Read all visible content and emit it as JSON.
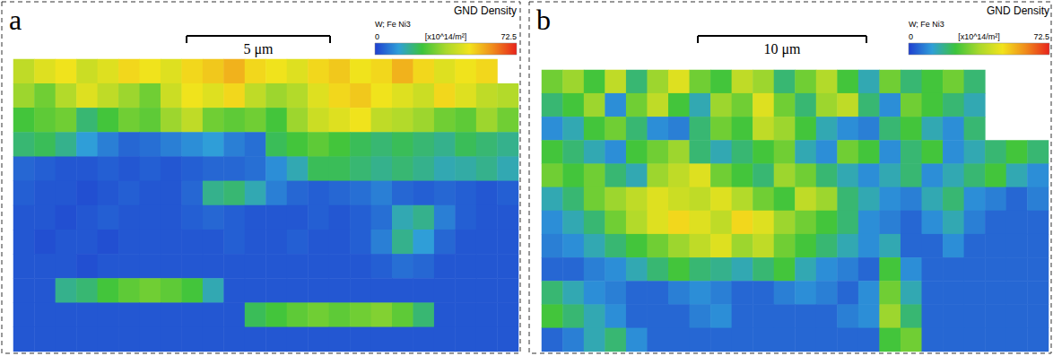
{
  "chart_data": [
    {
      "type": "heatmap",
      "title": "a",
      "scale_bar": "5 μm",
      "colorbar_title": "GND Density",
      "colorbar_subtitle": "W; Fe Ni3",
      "colorbar_unit": "[x10^14/m²]",
      "colorbar_range": [
        0,
        72.5
      ],
      "colorbar_ticks": [
        0,
        72.5
      ],
      "tick_labels": false,
      "cells": [
        [
          40,
          45,
          48,
          42,
          45,
          50,
          48,
          45,
          50,
          52,
          55,
          50,
          48,
          45,
          50,
          52,
          48,
          50,
          55,
          50,
          45,
          48,
          50,
          null
        ],
        [
          35,
          30,
          38,
          45,
          40,
          35,
          30,
          42,
          48,
          45,
          50,
          40,
          35,
          38,
          45,
          50,
          52,
          48,
          45,
          42,
          50,
          45,
          40,
          38
        ],
        [
          25,
          28,
          30,
          20,
          25,
          30,
          28,
          35,
          40,
          30,
          28,
          30,
          25,
          35,
          42,
          45,
          48,
          40,
          38,
          35,
          30,
          28,
          35,
          30
        ],
        [
          20,
          22,
          18,
          12,
          8,
          5,
          6,
          8,
          10,
          12,
          8,
          6,
          22,
          25,
          28,
          25,
          22,
          20,
          22,
          20,
          18,
          22,
          20,
          18
        ],
        [
          5,
          4,
          3,
          3,
          4,
          3,
          4,
          3,
          4,
          5,
          5,
          6,
          10,
          15,
          22,
          22,
          20,
          18,
          20,
          18,
          15,
          16,
          18,
          15
        ],
        [
          4,
          3,
          3,
          2,
          3,
          4,
          3,
          3,
          5,
          18,
          20,
          15,
          8,
          5,
          4,
          5,
          6,
          8,
          5,
          4,
          5,
          4,
          3,
          4
        ],
        [
          3,
          3,
          2,
          3,
          4,
          3,
          3,
          3,
          4,
          5,
          4,
          3,
          3,
          3,
          4,
          3,
          4,
          6,
          15,
          18,
          8,
          4,
          3,
          3
        ],
        [
          3,
          2,
          3,
          3,
          2,
          3,
          3,
          3,
          3,
          3,
          4,
          3,
          3,
          4,
          3,
          3,
          4,
          8,
          18,
          12,
          5,
          3,
          3,
          3
        ],
        [
          3,
          3,
          3,
          2,
          3,
          3,
          3,
          3,
          3,
          3,
          3,
          3,
          3,
          3,
          3,
          3,
          3,
          4,
          6,
          5,
          3,
          3,
          3,
          3
        ],
        [
          3,
          3,
          18,
          20,
          25,
          28,
          30,
          28,
          25,
          15,
          3,
          3,
          3,
          3,
          3,
          3,
          3,
          3,
          3,
          3,
          3,
          3,
          3,
          3
        ],
        [
          3,
          3,
          3,
          3,
          3,
          3,
          3,
          3,
          3,
          3,
          3,
          22,
          25,
          28,
          30,
          28,
          30,
          32,
          28,
          20,
          3,
          3,
          3,
          3
        ],
        [
          3,
          3,
          3,
          3,
          3,
          3,
          3,
          3,
          3,
          3,
          3,
          3,
          3,
          3,
          3,
          3,
          3,
          3,
          3,
          3,
          3,
          3,
          3,
          3
        ]
      ]
    },
    {
      "type": "heatmap",
      "title": "b",
      "scale_bar": "10 μm",
      "colorbar_title": "GND Density",
      "colorbar_subtitle": "W; Fe Ni3",
      "colorbar_unit": "[x10^14/m²]",
      "colorbar_range": [
        0,
        72.5
      ],
      "colorbar_ticks": [
        0,
        72.5
      ],
      "tick_labels": false,
      "cells": [
        [
          30,
          35,
          25,
          40,
          20,
          35,
          45,
          30,
          25,
          40,
          35,
          20,
          30,
          38,
          25,
          15,
          30,
          20,
          25,
          30,
          20,
          null,
          null,
          null
        ],
        [
          20,
          25,
          35,
          10,
          30,
          40,
          25,
          15,
          35,
          30,
          45,
          30,
          20,
          35,
          40,
          20,
          10,
          30,
          25,
          20,
          15,
          null,
          null,
          null
        ],
        [
          10,
          15,
          25,
          30,
          20,
          10,
          8,
          20,
          30,
          25,
          40,
          35,
          25,
          15,
          10,
          8,
          20,
          25,
          15,
          10,
          20,
          null,
          null,
          null
        ],
        [
          25,
          20,
          15,
          10,
          25,
          30,
          35,
          20,
          15,
          20,
          25,
          30,
          15,
          10,
          30,
          25,
          10,
          20,
          25,
          10,
          15,
          20,
          25,
          20
        ],
        [
          30,
          25,
          30,
          20,
          15,
          35,
          40,
          45,
          30,
          25,
          20,
          35,
          30,
          20,
          15,
          10,
          15,
          20,
          10,
          15,
          20,
          25,
          15,
          10
        ],
        [
          15,
          20,
          30,
          35,
          40,
          45,
          42,
          40,
          45,
          38,
          30,
          25,
          40,
          35,
          20,
          15,
          10,
          8,
          15,
          20,
          10,
          8,
          5,
          8
        ],
        [
          10,
          15,
          20,
          30,
          38,
          45,
          50,
          45,
          40,
          50,
          45,
          35,
          30,
          25,
          20,
          10,
          8,
          5,
          10,
          15,
          8,
          5,
          5,
          5
        ],
        [
          8,
          10,
          15,
          20,
          25,
          30,
          35,
          40,
          45,
          35,
          40,
          30,
          25,
          20,
          15,
          10,
          15,
          5,
          5,
          10,
          5,
          5,
          5,
          5
        ],
        [
          5,
          5,
          8,
          10,
          15,
          20,
          25,
          20,
          18,
          15,
          20,
          25,
          15,
          10,
          8,
          5,
          25,
          10,
          5,
          5,
          5,
          5,
          5,
          5
        ],
        [
          20,
          15,
          10,
          8,
          5,
          5,
          8,
          10,
          8,
          5,
          5,
          8,
          10,
          8,
          5,
          10,
          30,
          15,
          5,
          5,
          5,
          5,
          5,
          5
        ],
        [
          25,
          20,
          15,
          10,
          5,
          5,
          5,
          8,
          10,
          5,
          5,
          5,
          5,
          5,
          8,
          10,
          35,
          20,
          5,
          5,
          5,
          5,
          5,
          5
        ],
        [
          5,
          8,
          15,
          20,
          10,
          5,
          5,
          5,
          5,
          5,
          5,
          5,
          5,
          5,
          5,
          5,
          25,
          30,
          5,
          5,
          5,
          5,
          5,
          5
        ]
      ]
    }
  ]
}
